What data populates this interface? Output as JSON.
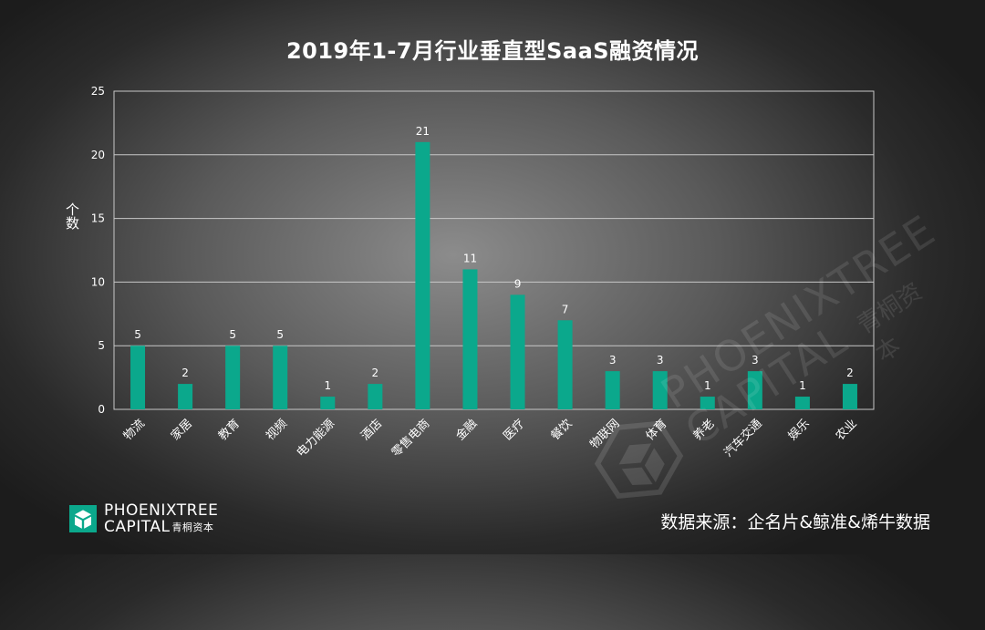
{
  "chart_data": {
    "type": "bar",
    "title": "2019年1-7月行业垂直型SaaS融资情况",
    "xlabel": "",
    "ylabel": "个数",
    "ylim": [
      0,
      25
    ],
    "yticks": [
      0,
      5,
      10,
      15,
      20,
      25
    ],
    "grid": true,
    "categories": [
      "物流",
      "家居",
      "教育",
      "视频",
      "电力能源",
      "酒店",
      "零售电商",
      "金融",
      "医疗",
      "餐饮",
      "物联网",
      "体育",
      "养老",
      "汽车交通",
      "娱乐",
      "农业"
    ],
    "values": [
      5,
      2,
      5,
      5,
      1,
      2,
      21,
      11,
      9,
      7,
      3,
      3,
      1,
      3,
      1,
      2
    ],
    "bar_color": "#0ba88c",
    "grid_color": "#c8c8c8"
  },
  "logo": {
    "line1": "PHOENIXTREE",
    "line2": "CAPITAL",
    "line2_cn": "青桐资本",
    "icon": "phoenixtree-cube-icon",
    "icon_color": "#0ba88c"
  },
  "watermark": {
    "line1": "PHOENIXTREE",
    "line2": "CAPITAL",
    "cn": "青桐资本"
  },
  "source": "数据来源：企名片&鲸准&烯牛数据"
}
